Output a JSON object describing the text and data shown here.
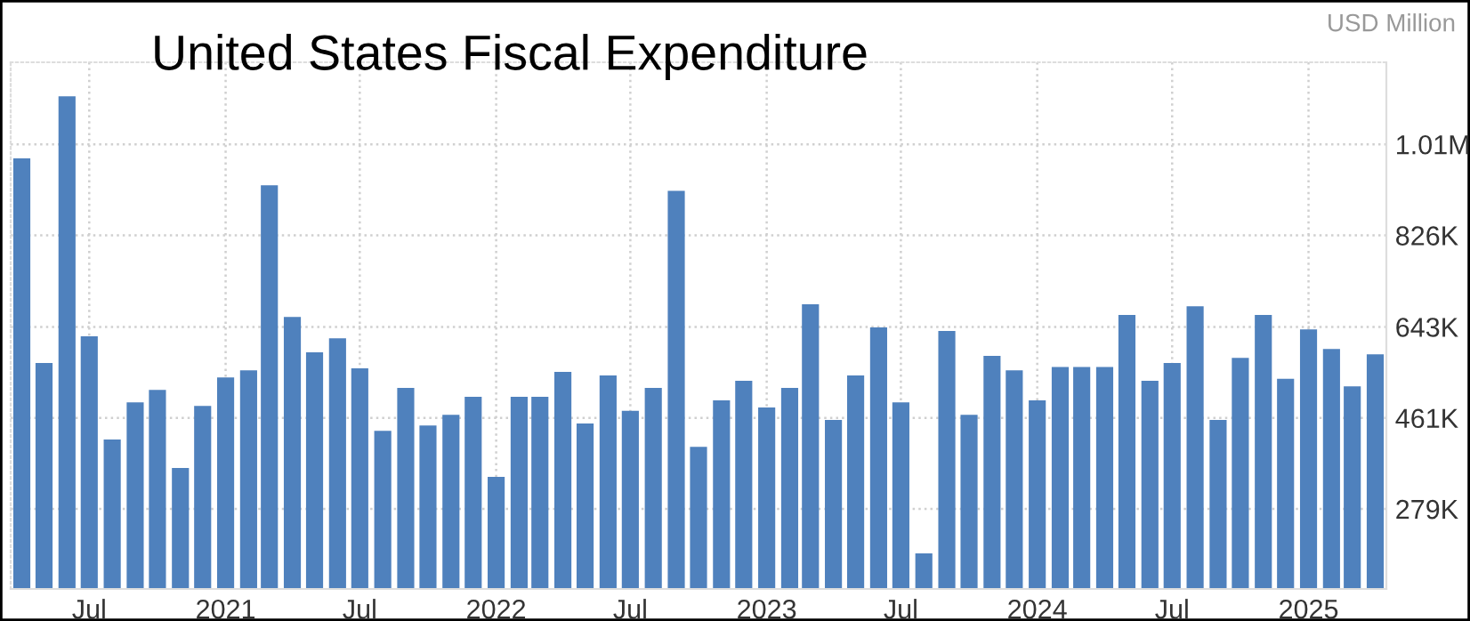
{
  "chart_data": {
    "type": "bar",
    "title": "United States Fiscal Expenditure",
    "ylabel": "USD Million",
    "x": [
      "2020-04",
      "2020-05",
      "2020-06",
      "2020-07",
      "2020-08",
      "2020-09",
      "2020-10",
      "2020-11",
      "2020-12",
      "2021-01",
      "2021-02",
      "2021-03",
      "2021-04",
      "2021-05",
      "2021-06",
      "2021-07",
      "2021-08",
      "2021-09",
      "2021-10",
      "2021-11",
      "2021-12",
      "2022-01",
      "2022-02",
      "2022-03",
      "2022-04",
      "2022-05",
      "2022-06",
      "2022-07",
      "2022-08",
      "2022-09",
      "2022-10",
      "2022-11",
      "2022-12",
      "2023-01",
      "2023-02",
      "2023-03",
      "2023-04",
      "2023-05",
      "2023-06",
      "2023-07",
      "2023-08",
      "2023-09",
      "2023-10",
      "2023-11",
      "2023-12",
      "2024-01",
      "2024-02",
      "2024-03",
      "2024-04",
      "2024-05",
      "2024-06",
      "2024-07",
      "2024-08",
      "2024-09",
      "2024-10",
      "2024-11",
      "2024-12",
      "2025-01",
      "2025-02",
      "2025-03",
      "2025-04"
    ],
    "values": [
      980000,
      571000,
      1104000,
      624000,
      418000,
      492000,
      517000,
      361000,
      485000,
      542000,
      556000,
      926000,
      663000,
      592000,
      620000,
      560000,
      435000,
      521000,
      446000,
      467000,
      503000,
      343000,
      503000,
      503000,
      553000,
      450000,
      546000,
      475000,
      521000,
      915000,
      403000,
      496000,
      535000,
      482000,
      521000,
      688000,
      457000,
      546000,
      642000,
      492000,
      190000,
      635000,
      467000,
      585000,
      556000,
      496000,
      563000,
      563000,
      563000,
      667000,
      535000,
      571000,
      684000,
      457000,
      581000,
      667000,
      539000,
      638000,
      599000,
      524000,
      588000
    ],
    "color": "#4f81bd",
    "xlim": [
      "2020-03-17",
      "2025-04-16"
    ],
    "xticks": [
      {
        "value": "2020-07",
        "label": "Jul"
      },
      {
        "value": "2021-01",
        "label": "2021"
      },
      {
        "value": "2021-07",
        "label": "Jul"
      },
      {
        "value": "2022-01",
        "label": "2022"
      },
      {
        "value": "2022-07",
        "label": "Jul"
      },
      {
        "value": "2023-01",
        "label": "2023"
      },
      {
        "value": "2023-07",
        "label": "Jul"
      },
      {
        "value": "2024-01",
        "label": "2024"
      },
      {
        "value": "2024-07",
        "label": "Jul"
      },
      {
        "value": "2025-01",
        "label": "2025"
      }
    ],
    "ylim": [
      119000,
      1172000
    ],
    "yticks": [
      {
        "value": 279000,
        "label": "279K"
      },
      {
        "value": 461000,
        "label": "461K"
      },
      {
        "value": 643000,
        "label": "643K"
      },
      {
        "value": 826000,
        "label": "826K"
      },
      {
        "value": 1008000,
        "label": "1.01M"
      }
    ],
    "grid": true
  }
}
